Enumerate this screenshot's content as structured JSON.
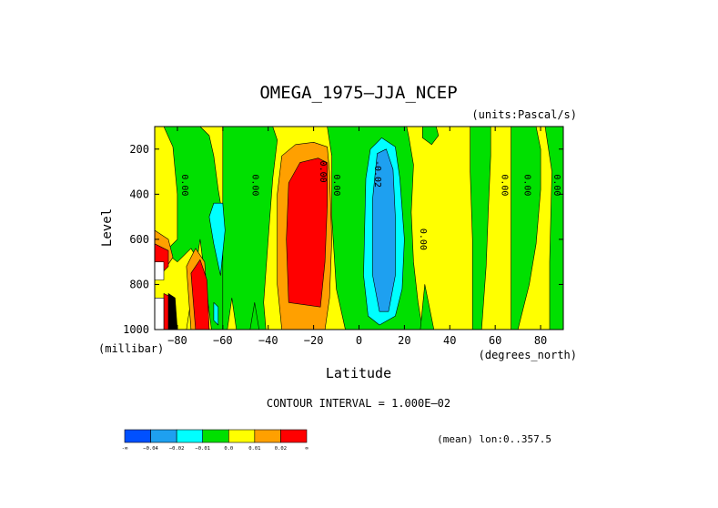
{
  "chart_data": {
    "type": "heatmap",
    "title": "OMEGA_1975–JJA_NCEP",
    "units_label": "(units:Pascal/s)",
    "xlabel": "Latitude",
    "x_units": "(degrees_north)",
    "ylabel": "Level",
    "y_units": "(millibar)",
    "xlim": [
      -90,
      90
    ],
    "ylim": [
      1000,
      100
    ],
    "x_ticks": [
      -80,
      -60,
      -40,
      -20,
      0,
      20,
      40,
      60,
      80
    ],
    "x_tick_labels": [
      "−80",
      "−60",
      "−40",
      "−20",
      "0",
      "20",
      "40",
      "60",
      "80"
    ],
    "y_ticks": [
      200,
      400,
      600,
      800,
      1000
    ],
    "y_tick_labels": [
      "200",
      "400",
      "600",
      "800",
      "1000"
    ],
    "contour_interval_text": "CONTOUR INTERVAL = 1.000E–02",
    "footer_text": "(mean) lon:0..357.5",
    "colorbar": {
      "bins": [
        {
          "color": "#0050ff"
        },
        {
          "color": "#1ea0f0"
        },
        {
          "color": "#00ffff"
        },
        {
          "color": "#00e000"
        },
        {
          "color": "#ffff00"
        },
        {
          "color": "#ffa000"
        },
        {
          "color": "#ff0000"
        }
      ],
      "labels": [
        "-∞",
        "−0.04",
        "−0.02",
        "−0.01",
        "0.0",
        "0.01",
        "0.02",
        "∞"
      ]
    },
    "contour_labels": [
      {
        "text": "0.00",
        "lat": -78,
        "level": 360
      },
      {
        "text": "0.00",
        "lat": -47,
        "level": 360
      },
      {
        "text": "0.00",
        "lat": -17,
        "level": 300
      },
      {
        "text": "0.00",
        "lat": -11,
        "level": 360
      },
      {
        "text": "-0.02",
        "lat": 7,
        "level": 310
      },
      {
        "text": "0.00",
        "lat": 27,
        "level": 600
      },
      {
        "text": "0.00",
        "lat": 63,
        "level": 360
      },
      {
        "text": "0.00",
        "lat": 73,
        "level": 360
      },
      {
        "text": "0.00",
        "lat": 86,
        "level": 360
      }
    ],
    "regions": [
      {
        "color": "#00e000",
        "polys": [
          [
            [
              -90,
              100
            ],
            [
              -70,
              100
            ],
            [
              -66,
              140
            ],
            [
              -64,
              230
            ],
            [
              -62,
              380
            ],
            [
              -59,
              560
            ],
            [
              -59,
              800
            ],
            [
              -57,
              1000
            ],
            [
              -90,
              1000
            ]
          ],
          [
            [
              -60,
              100
            ],
            [
              -38,
              100
            ],
            [
              -36,
              160
            ],
            [
              -38,
              330
            ],
            [
              -40,
              600
            ],
            [
              -42,
              880
            ],
            [
              -41,
              1000
            ],
            [
              -60,
              1000
            ]
          ],
          [
            [
              -14,
              100
            ],
            [
              21,
              100
            ],
            [
              22,
              150
            ],
            [
              24,
              270
            ],
            [
              23,
              480
            ],
            [
              24,
              700
            ],
            [
              26,
              880
            ],
            [
              28,
              1000
            ],
            [
              -6,
              1000
            ],
            [
              -10,
              820
            ],
            [
              -12,
              500
            ],
            [
              -12,
              230
            ]
          ],
          [
            [
              28,
              100
            ],
            [
              34,
              100
            ],
            [
              35,
              140
            ],
            [
              32,
              180
            ],
            [
              28,
              150
            ]
          ],
          [
            [
              49,
              100
            ],
            [
              58,
              100
            ],
            [
              58,
              230
            ],
            [
              57,
              460
            ],
            [
              56,
              720
            ],
            [
              54,
              1000
            ],
            [
              50,
              1000
            ],
            [
              50,
              600
            ],
            [
              49,
              300
            ]
          ],
          [
            [
              67,
              100
            ],
            [
              78,
              100
            ],
            [
              80,
              200
            ],
            [
              80,
              380
            ],
            [
              78,
              620
            ],
            [
              75,
              800
            ],
            [
              70,
              1000
            ],
            [
              67,
              1000
            ],
            [
              67,
              700
            ],
            [
              67,
              400
            ]
          ],
          [
            [
              82,
              100
            ],
            [
              90,
              100
            ],
            [
              90,
              1000
            ],
            [
              84,
              1000
            ],
            [
              84,
              700
            ],
            [
              85,
              300
            ]
          ],
          [
            [
              29,
              800
            ],
            [
              33,
              1000
            ],
            [
              27,
              1000
            ]
          ],
          [
            [
              -46,
              880
            ],
            [
              -44,
              1000
            ],
            [
              -48,
              1000
            ]
          ]
        ]
      },
      {
        "color": "#ffff00",
        "polys": [
          [
            [
              -90,
              100
            ],
            [
              -86,
              100
            ],
            [
              -82,
              190
            ],
            [
              -80,
              400
            ],
            [
              -80,
              600
            ],
            [
              -84,
              640
            ],
            [
              -90,
              600
            ]
          ],
          [
            [
              -90,
              620
            ],
            [
              -80,
              700
            ],
            [
              -74,
              640
            ],
            [
              -68,
              740
            ],
            [
              -67,
              1000
            ],
            [
              -90,
              1000
            ]
          ],
          [
            [
              -76,
              1000
            ],
            [
              -70,
              600
            ],
            [
              -68,
              760
            ],
            [
              -65,
              1000
            ]
          ],
          [
            [
              -56,
              860
            ],
            [
              -54,
              1000
            ],
            [
              -58,
              1000
            ]
          ]
        ]
      },
      {
        "color": "#ffa000",
        "polys": [
          [
            [
              -90,
              560
            ],
            [
              -84,
              600
            ],
            [
              -82,
              680
            ],
            [
              -86,
              740
            ],
            [
              -90,
              720
            ]
          ],
          [
            [
              -76,
              720
            ],
            [
              -72,
              640
            ],
            [
              -68,
              700
            ],
            [
              -66,
              1000
            ],
            [
              -74,
              1000
            ]
          ],
          [
            [
              -34,
              1000
            ],
            [
              -36,
              800
            ],
            [
              -36,
              400
            ],
            [
              -34,
              230
            ],
            [
              -28,
              180
            ],
            [
              -20,
              170
            ],
            [
              -14,
              190
            ],
            [
              -13,
              300
            ],
            [
              -12,
              600
            ],
            [
              -13,
              860
            ],
            [
              -15,
              1000
            ]
          ]
        ]
      },
      {
        "color": "#ff0000",
        "polys": [
          [
            [
              -90,
              620
            ],
            [
              -84,
              650
            ],
            [
              -84,
              720
            ],
            [
              -88,
              760
            ],
            [
              -90,
              740
            ]
          ],
          [
            [
              -86,
              840
            ],
            [
              -82,
              860
            ],
            [
              -80,
              1000
            ],
            [
              -86,
              1000
            ]
          ],
          [
            [
              -74,
              750
            ],
            [
              -70,
              690
            ],
            [
              -67,
              780
            ],
            [
              -66,
              1000
            ],
            [
              -72,
              1000
            ]
          ],
          [
            [
              -31,
              880
            ],
            [
              -32,
              600
            ],
            [
              -31,
              350
            ],
            [
              -26,
              260
            ],
            [
              -18,
              240
            ],
            [
              -14,
              260
            ],
            [
              -14,
              450
            ],
            [
              -15,
              700
            ],
            [
              -17,
              900
            ]
          ]
        ]
      },
      {
        "color": "#00ffff",
        "polys": [
          [
            [
              -66,
              500
            ],
            [
              -64,
              440
            ],
            [
              -60,
              440
            ],
            [
              -59,
              560
            ],
            [
              -61,
              760
            ],
            [
              -64,
              620
            ]
          ],
          [
            [
              -64,
              880
            ],
            [
              -62,
              900
            ],
            [
              -62,
              980
            ],
            [
              -64,
              960
            ]
          ],
          [
            [
              3,
              330
            ],
            [
              5,
              200
            ],
            [
              10,
              150
            ],
            [
              16,
              190
            ],
            [
              18,
              330
            ],
            [
              20,
              600
            ],
            [
              19,
              820
            ],
            [
              16,
              940
            ],
            [
              9,
              980
            ],
            [
              4,
              940
            ],
            [
              2,
              760
            ]
          ]
        ]
      },
      {
        "color": "#1ea0f0",
        "polys": [
          [
            [
              6,
              420
            ],
            [
              8,
              220
            ],
            [
              12,
              200
            ],
            [
              15,
              290
            ],
            [
              16,
              500
            ],
            [
              16,
              760
            ],
            [
              13,
              920
            ],
            [
              9,
              920
            ],
            [
              6,
              760
            ]
          ]
        ]
      },
      {
        "color": "#ffffff",
        "polys": [
          [
            [
              -90,
              700
            ],
            [
              -86,
              700
            ],
            [
              -86,
              780
            ],
            [
              -90,
              780
            ]
          ],
          [
            [
              -90,
              860
            ],
            [
              -86,
              860
            ],
            [
              -86,
              1000
            ],
            [
              -90,
              1000
            ]
          ]
        ]
      },
      {
        "color": "#000000",
        "polys": [
          [
            [
              -84,
              840
            ],
            [
              -81,
              860
            ],
            [
              -80,
              1000
            ],
            [
              -84,
              1000
            ]
          ]
        ]
      }
    ]
  }
}
